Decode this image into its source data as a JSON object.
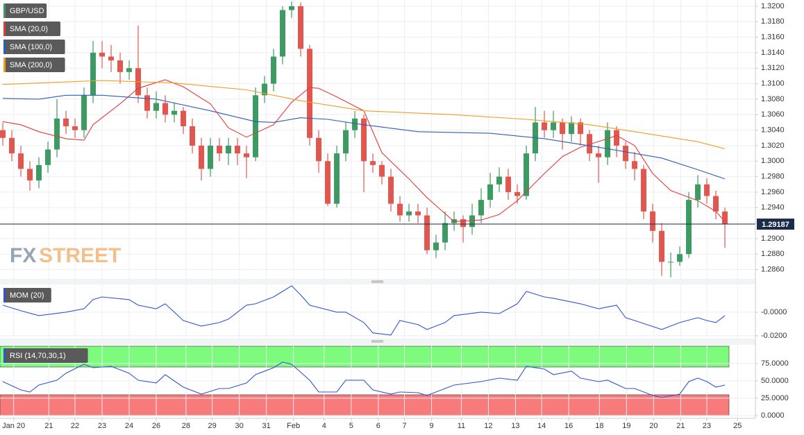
{
  "chart_data": [
    {
      "type": "candlestick",
      "watermark": [
        "FX",
        "STREET"
      ],
      "xlim": [
        -0.31,
        83.38
      ],
      "ylim": [
        1.2848,
        1.3208
      ],
      "yticks": [
        {
          "value": 1.286,
          "label": "1.2860"
        },
        {
          "value": 1.288,
          "label": "1.2880"
        },
        {
          "value": 1.29,
          "label": "1.2900"
        },
        {
          "value": 1.292,
          "label": "1.2920"
        },
        {
          "value": 1.294,
          "label": "1.2940"
        },
        {
          "value": 1.296,
          "label": "1.2960"
        },
        {
          "value": 1.298,
          "label": "1.2980"
        },
        {
          "value": 1.3,
          "label": "1.3000"
        },
        {
          "value": 1.302,
          "label": "1.3020"
        },
        {
          "value": 1.304,
          "label": "1.3040"
        },
        {
          "value": 1.306,
          "label": "1.3060"
        },
        {
          "value": 1.308,
          "label": "1.3080"
        },
        {
          "value": 1.31,
          "label": "1.3100"
        },
        {
          "value": 1.312,
          "label": "1.3120"
        },
        {
          "value": 1.314,
          "label": "1.3140"
        },
        {
          "value": 1.316,
          "label": "1.3160"
        },
        {
          "value": 1.318,
          "label": "1.3180"
        },
        {
          "value": 1.32,
          "label": "1.3200"
        }
      ],
      "grid": true,
      "last_price": 1.29187,
      "last_price_color": "#1d2b4a",
      "series": [
        {
          "name": "GBP/USD",
          "color": "#3d9a62",
          "up_color": "#3d9a62",
          "down_color": "#e0574f",
          "x": [
            0,
            1,
            2,
            3,
            4,
            5,
            6,
            7,
            8,
            9,
            10,
            11,
            12,
            13,
            14,
            15,
            16,
            17,
            18,
            19,
            20,
            21,
            22,
            23,
            24,
            25,
            26,
            27,
            28,
            29,
            30,
            31,
            32,
            33,
            34,
            35,
            36,
            37,
            38,
            39,
            40,
            41,
            42,
            43,
            44,
            45,
            46,
            47,
            48,
            49,
            50,
            51,
            52,
            53,
            54,
            55,
            56,
            57,
            58,
            59,
            60,
            61,
            62,
            63,
            64,
            65,
            66,
            67,
            68,
            69,
            70,
            71,
            72,
            73,
            74,
            75,
            76,
            77,
            78,
            79,
            80
          ],
          "open": [
            1.304,
            1.303,
            1.301,
            1.299,
            1.2975,
            1.2995,
            1.3015,
            1.3055,
            1.3045,
            1.304,
            1.3085,
            1.314,
            1.3135,
            1.313,
            1.3115,
            1.312,
            1.3085,
            1.3065,
            1.3075,
            1.306,
            1.3065,
            1.3045,
            1.302,
            1.299,
            1.302,
            1.301,
            1.302,
            1.301,
            1.3005,
            1.3085,
            1.31,
            1.3135,
            1.3195,
            1.32,
            1.3145,
            1.303,
            1.3,
            1.2945,
            1.301,
            1.304,
            1.3055,
            1.3,
            1.2995,
            1.298,
            1.2945,
            1.293,
            1.2935,
            1.293,
            1.2885,
            1.2895,
            1.292,
            1.2925,
            1.2915,
            1.293,
            1.295,
            1.297,
            1.298,
            1.296,
            1.2955,
            1.301,
            1.305,
            1.304,
            1.305,
            1.3035,
            1.305,
            1.3035,
            1.301,
            1.3005,
            1.304,
            1.302,
            1.3,
            1.299,
            1.2935,
            1.291,
            1.287,
            1.287,
            1.288,
            1.295,
            1.297,
            1.2955,
            1.2935
          ],
          "high": [
            1.305,
            1.304,
            1.302,
            1.3,
            1.3005,
            1.3025,
            1.308,
            1.3065,
            1.3055,
            1.3095,
            1.3155,
            1.3155,
            1.315,
            1.314,
            1.313,
            1.3175,
            1.3095,
            1.309,
            1.3085,
            1.3075,
            1.307,
            1.3055,
            1.303,
            1.303,
            1.303,
            1.303,
            1.303,
            1.302,
            1.3095,
            1.311,
            1.3145,
            1.32,
            1.3206,
            1.3205,
            1.315,
            1.304,
            1.301,
            1.302,
            1.305,
            1.3065,
            1.306,
            1.301,
            1.3,
            1.299,
            1.2955,
            1.2945,
            1.2945,
            1.294,
            1.2905,
            1.2935,
            1.2935,
            1.293,
            1.2945,
            1.2965,
            1.2985,
            1.2992,
            1.299,
            1.297,
            1.302,
            1.307,
            1.3065,
            1.3065,
            1.3055,
            1.3058,
            1.3055,
            1.304,
            1.302,
            1.305,
            1.3045,
            1.3025,
            1.3012,
            1.2995,
            1.2945,
            1.292,
            1.2882,
            1.289,
            1.296,
            1.2982,
            1.2978,
            1.2962,
            1.294
          ],
          "low": [
            1.302,
            1.3,
            1.298,
            1.2962,
            1.2965,
            1.2985,
            1.3005,
            1.3035,
            1.303,
            1.303,
            1.3075,
            1.312,
            1.3115,
            1.31,
            1.3105,
            1.3075,
            1.3055,
            1.3055,
            1.305,
            1.305,
            1.3035,
            1.301,
            1.2975,
            1.298,
            1.3,
            1.2995,
            1.2995,
            1.2978,
            1.3,
            1.3075,
            1.309,
            1.3125,
            1.3185,
            1.3135,
            1.302,
            1.2985,
            1.2942,
            1.294,
            1.3,
            1.303,
            1.296,
            1.2985,
            1.297,
            1.2935,
            1.2922,
            1.2922,
            1.292,
            1.288,
            1.2875,
            1.2885,
            1.291,
            1.2895,
            1.2905,
            1.292,
            1.294,
            1.296,
            1.295,
            1.2945,
            1.295,
            1.3,
            1.303,
            1.303,
            1.3015,
            1.3025,
            1.302,
            1.3,
            1.2972,
            1.2995,
            1.3005,
            1.299,
            1.2975,
            1.2925,
            1.2895,
            1.2852,
            1.285,
            1.2865,
            1.2875,
            1.294,
            1.2945,
            1.2925,
            1.2888
          ],
          "close": [
            1.303,
            1.301,
            1.299,
            1.2975,
            1.2995,
            1.3015,
            1.3055,
            1.3045,
            1.304,
            1.3085,
            1.314,
            1.3135,
            1.313,
            1.3115,
            1.312,
            1.3085,
            1.3065,
            1.3075,
            1.306,
            1.3065,
            1.3045,
            1.302,
            1.299,
            1.302,
            1.301,
            1.302,
            1.301,
            1.3005,
            1.3085,
            1.31,
            1.3135,
            1.3195,
            1.32,
            1.3145,
            1.303,
            1.3,
            1.2945,
            1.301,
            1.304,
            1.3055,
            1.3,
            1.2995,
            1.298,
            1.2945,
            1.293,
            1.2935,
            1.293,
            1.2885,
            1.2895,
            1.292,
            1.2925,
            1.2915,
            1.293,
            1.295,
            1.297,
            1.298,
            1.296,
            1.2955,
            1.301,
            1.305,
            1.304,
            1.305,
            1.3035,
            1.305,
            1.3035,
            1.301,
            1.3005,
            1.304,
            1.302,
            1.3,
            1.299,
            1.2935,
            1.291,
            1.287,
            1.287,
            1.288,
            1.295,
            1.297,
            1.2955,
            1.2935,
            1.29187
          ]
        },
        {
          "name": "SMA (20,0)",
          "color": "#e8393a",
          "x": [
            0,
            2,
            4,
            7,
            9,
            10,
            13,
            15,
            18,
            20,
            23,
            25,
            27,
            30,
            32,
            34,
            35,
            37,
            40,
            42,
            45,
            47,
            50,
            53,
            55,
            57,
            60,
            62,
            64,
            67,
            68,
            70,
            72,
            74,
            77,
            79,
            80
          ],
          "values": [
            1.3051,
            1.3047,
            1.3038,
            1.3029,
            1.3027,
            1.3047,
            1.3074,
            1.3094,
            1.3105,
            1.3096,
            1.3074,
            1.3043,
            1.3031,
            1.3047,
            1.3076,
            1.3095,
            1.3094,
            1.3083,
            1.3065,
            1.3011,
            1.2977,
            1.2953,
            1.2922,
            1.2924,
            1.2931,
            1.2949,
            1.2984,
            1.3006,
            1.3018,
            1.3029,
            1.3033,
            1.302,
            1.2984,
            1.2962,
            1.2949,
            1.2935,
            1.2922
          ]
        },
        {
          "name": "SMA (100,0)",
          "color": "#2b5fb4",
          "x": [
            0,
            4,
            7,
            11,
            17,
            23,
            28,
            30,
            33,
            36,
            40,
            46,
            54,
            60,
            66,
            73,
            77,
            80
          ],
          "values": [
            1.3081,
            1.308,
            1.3085,
            1.3085,
            1.308,
            1.3065,
            1.3051,
            1.305,
            1.3056,
            1.3054,
            1.3047,
            1.3038,
            1.3036,
            1.3029,
            1.3018,
            1.3004,
            1.2989,
            1.2977
          ]
        },
        {
          "name": "SMA (200,0)",
          "color": "#f39c1f",
          "x": [
            0,
            11,
            19,
            27,
            33,
            40,
            50,
            58,
            65,
            70,
            77,
            80
          ],
          "values": [
            1.3099,
            1.3104,
            1.3101,
            1.3092,
            1.3078,
            1.3065,
            1.306,
            1.3054,
            1.3047,
            1.3038,
            1.3025,
            1.3016
          ]
        }
      ]
    },
    {
      "type": "line",
      "xlim": [
        -0.31,
        83.38
      ],
      "ylim": [
        -0.0224,
        0.0235
      ],
      "yticks": [
        {
          "value": -0.02,
          "label": "-0.0200"
        },
        {
          "value": 0,
          "label": "-0.0000"
        }
      ],
      "grid": true,
      "series": [
        {
          "name": "MOM (20)",
          "color": "#2f55d4",
          "x": [
            0,
            2,
            4,
            7,
            9,
            10,
            11,
            14,
            15,
            17,
            18,
            20,
            22,
            24,
            25,
            27,
            28,
            30,
            31,
            32,
            33,
            34,
            37,
            38,
            40,
            41,
            43,
            44,
            46,
            47,
            49,
            50,
            53,
            55,
            57,
            58,
            60,
            61,
            64,
            66,
            68,
            69,
            70,
            73,
            75,
            77,
            78,
            79,
            80
          ],
          "values": [
            0.0059,
            0.0012,
            -0.0029,
            0,
            0.0029,
            0.0106,
            0.0129,
            0.0106,
            0.0059,
            0.0029,
            0.0071,
            -0.0071,
            -0.0118,
            -0.0088,
            -0.0059,
            0.0059,
            0.0071,
            0.0129,
            0.0176,
            0.0224,
            0.0147,
            0.0059,
            0,
            0,
            -0.0088,
            -0.0176,
            -0.0194,
            -0.0071,
            -0.0106,
            -0.0147,
            -0.0088,
            -0.0029,
            0,
            -0.0012,
            0.0071,
            0.0176,
            0.0129,
            0.0118,
            0.0071,
            0.0029,
            0.0059,
            -0.0047,
            -0.0071,
            -0.0147,
            -0.0088,
            -0.0047,
            -0.0071,
            -0.0088,
            -0.0029
          ]
        }
      ]
    },
    {
      "type": "line",
      "xlim": [
        -0.31,
        83.38
      ],
      "ylim": [
        -1,
        102
      ],
      "yticks": [
        {
          "value": 0,
          "label": "0.0000"
        },
        {
          "value": 25,
          "label": "25.0000"
        },
        {
          "value": 50,
          "label": "50.0000"
        },
        {
          "value": 75,
          "label": "75.0000"
        }
      ],
      "xticks": [
        {
          "value": 1.2,
          "label": "Jan 20"
        },
        {
          "value": 5.1,
          "label": "21"
        },
        {
          "value": 8,
          "label": "22"
        },
        {
          "value": 11,
          "label": "23"
        },
        {
          "value": 14,
          "label": "24"
        },
        {
          "value": 17,
          "label": "26"
        },
        {
          "value": 20.3,
          "label": "28"
        },
        {
          "value": 23.2,
          "label": "29"
        },
        {
          "value": 26.2,
          "label": "30"
        },
        {
          "value": 29.2,
          "label": "31"
        },
        {
          "value": 32.2,
          "label": "Feb"
        },
        {
          "value": 35.6,
          "label": "4"
        },
        {
          "value": 38.6,
          "label": "5"
        },
        {
          "value": 41.6,
          "label": "6"
        },
        {
          "value": 44.5,
          "label": "7"
        },
        {
          "value": 47.5,
          "label": "9"
        },
        {
          "value": 50.8,
          "label": "11"
        },
        {
          "value": 53.8,
          "label": "12"
        },
        {
          "value": 56.8,
          "label": "13"
        },
        {
          "value": 59.7,
          "label": "14"
        },
        {
          "value": 62.7,
          "label": "16"
        },
        {
          "value": 66.1,
          "label": "18"
        },
        {
          "value": 69.1,
          "label": "19"
        },
        {
          "value": 72.1,
          "label": "20"
        },
        {
          "value": 75.1,
          "label": "21"
        },
        {
          "value": 78,
          "label": "23"
        },
        {
          "value": 81.4,
          "label": "25"
        }
      ],
      "grid": true,
      "bands": [
        {
          "from": 70,
          "to": 100,
          "color": "#7dfb7d"
        },
        {
          "from": 0,
          "to": 30,
          "color": "#f77b7b"
        }
      ],
      "series": [
        {
          "name": "RSI (14,70,30,1)",
          "color": "#2f55d4",
          "x": [
            0,
            2,
            3,
            4,
            6,
            7,
            9,
            10,
            12,
            14,
            15,
            17,
            18,
            20,
            22,
            24,
            25,
            27,
            28,
            30,
            31,
            32,
            34,
            35,
            37,
            38,
            40,
            41,
            43,
            44,
            46,
            47,
            49,
            50,
            53,
            55,
            57,
            58,
            60,
            61,
            63,
            64,
            66,
            67,
            69,
            70,
            72,
            73,
            75,
            76,
            77,
            78,
            79,
            80
          ],
          "values": [
            49,
            37,
            34,
            44,
            51,
            61,
            74,
            69,
            71,
            61,
            51,
            47,
            59,
            41,
            31,
            39,
            39,
            47,
            59,
            69,
            77,
            74,
            51,
            34,
            34,
            51,
            51,
            37,
            31,
            34,
            33,
            29,
            39,
            44,
            49,
            54,
            51,
            71,
            67,
            59,
            64,
            54,
            49,
            51,
            39,
            39,
            29,
            26,
            31,
            49,
            54,
            49,
            41,
            44
          ]
        }
      ]
    }
  ]
}
